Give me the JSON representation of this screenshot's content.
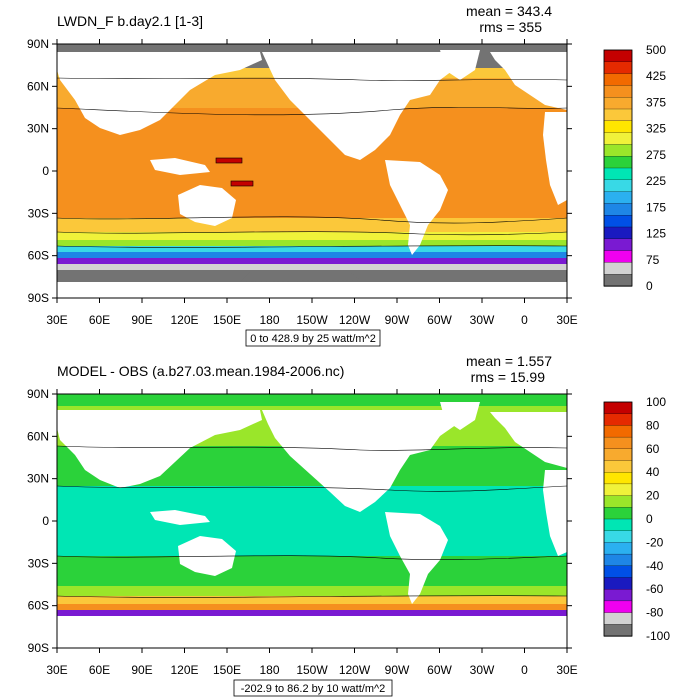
{
  "chart_data": [
    {
      "type": "heatmap",
      "title": "LWDN_F b.day2.1 [1-3]",
      "stats": {
        "mean_label": "mean = 343.4",
        "rms_label": "rms = 355"
      },
      "range_label": "0 to 428.9 by 25 watt/m^2",
      "x_ticks": [
        "30E",
        "60E",
        "90E",
        "120E",
        "150E",
        "180",
        "150W",
        "120W",
        "90W",
        "60W",
        "30W",
        "0",
        "30E"
      ],
      "y_ticks": [
        "90N",
        "60N",
        "30N",
        "0",
        "30S",
        "60S",
        "90S"
      ],
      "colorbar": {
        "labels": [
          "500",
          "425",
          "375",
          "325",
          "275",
          "225",
          "175",
          "125",
          "75",
          "0"
        ],
        "colors": [
          "#C40000",
          "#E52A00",
          "#F26A00",
          "#F5901E",
          "#F8AA2E",
          "#FBC83A",
          "#FFE600",
          "#F0F23A",
          "#9AE62A",
          "#2BD23A",
          "#00E6B4",
          "#38D9E6",
          "#2BB0F0",
          "#1E86E6",
          "#0050E6",
          "#1A1AC0",
          "#7A1AD2",
          "#F000F0",
          "#D2D2D2",
          "#737373"
        ]
      },
      "ylim": [
        -90,
        90
      ],
      "xlim": [
        30,
        390
      ]
    },
    {
      "type": "heatmap",
      "title": "MODEL - OBS (a.b27.03.mean.1984-2006.nc)",
      "stats": {
        "mean_label": "mean = 1.557",
        "rms_label": "rms = 15.99"
      },
      "range_label": "-202.9 to 86.2 by 10 watt/m^2",
      "x_ticks": [
        "30E",
        "60E",
        "90E",
        "120E",
        "150E",
        "180",
        "150W",
        "120W",
        "90W",
        "60W",
        "30W",
        "0",
        "30E"
      ],
      "y_ticks": [
        "90N",
        "60N",
        "30N",
        "0",
        "30S",
        "60S",
        "90S"
      ],
      "colorbar": {
        "labels": [
          "100",
          "80",
          "60",
          "40",
          "20",
          "0",
          "-20",
          "-40",
          "-60",
          "-80",
          "-100"
        ],
        "colors": [
          "#C40000",
          "#E52A00",
          "#F26A00",
          "#F5901E",
          "#F8AA2E",
          "#FBC83A",
          "#FFE600",
          "#F0F23A",
          "#9AE62A",
          "#2BD23A",
          "#00E6B4",
          "#38D9E6",
          "#2BB0F0",
          "#1E86E6",
          "#0050E6",
          "#1A1AC0",
          "#7A1AD2",
          "#F000F0",
          "#D2D2D2",
          "#737373"
        ]
      },
      "ylim": [
        -90,
        90
      ],
      "xlim": [
        30,
        390
      ]
    }
  ]
}
